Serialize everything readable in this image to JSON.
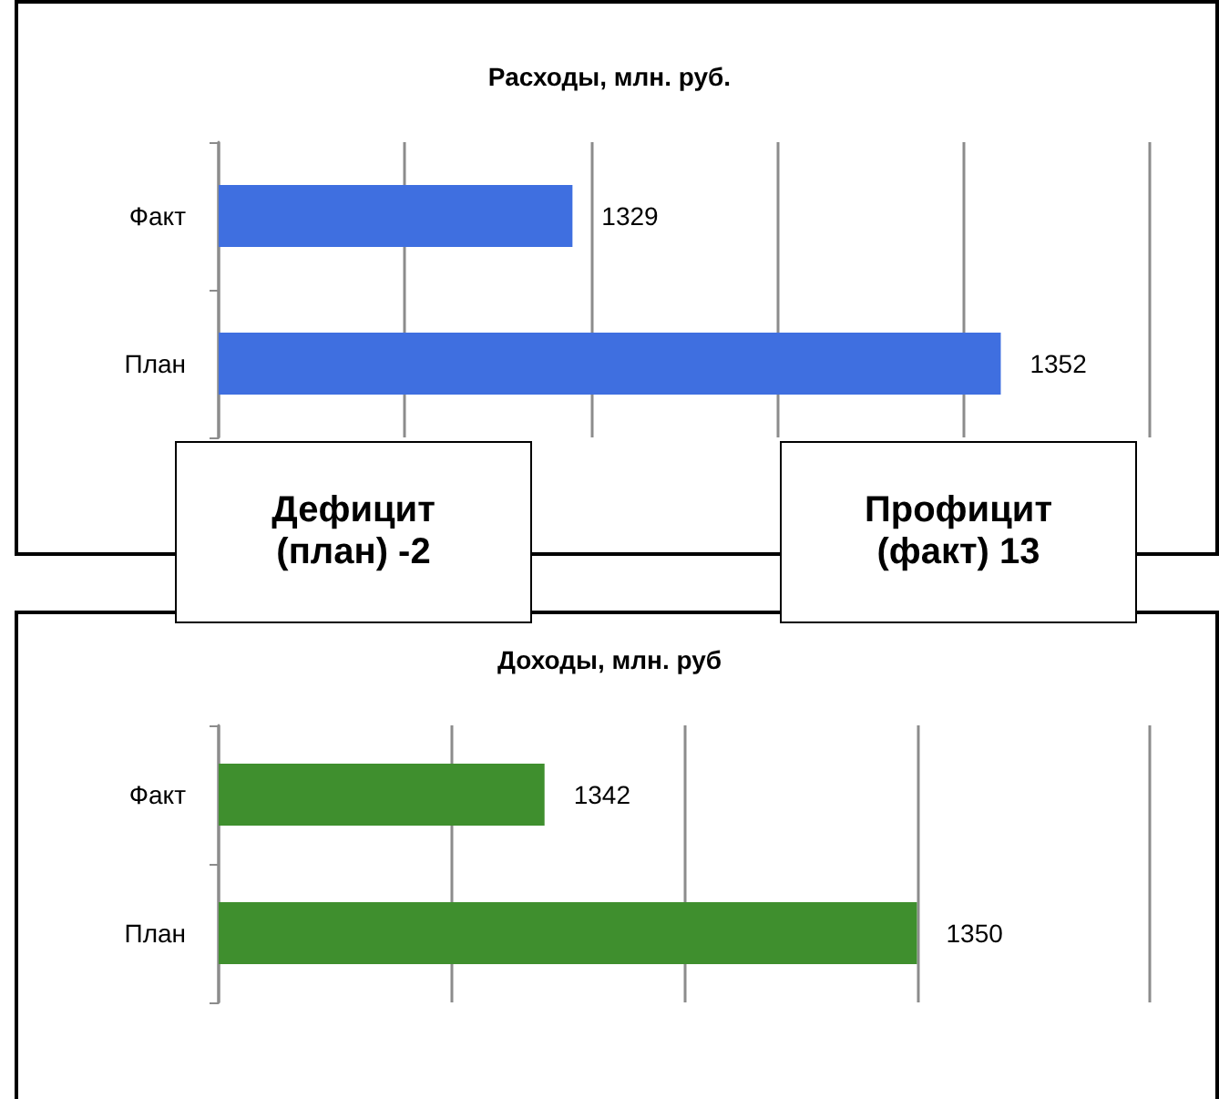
{
  "chart_data": [
    {
      "type": "bar",
      "orientation": "horizontal",
      "title": "Расходы, млн. руб.",
      "categories": [
        "Факт",
        "План"
      ],
      "values": [
        1329,
        1352
      ],
      "color": "#3f6fe0",
      "xlim": [
        1310,
        1360
      ],
      "xticks": [
        {
          "value": 1310,
          "label": null
        },
        {
          "value": 1320,
          "label": null
        },
        {
          "value": 1330,
          "label": null
        },
        {
          "value": 1340,
          "label": null
        },
        {
          "value": 1350,
          "label": null
        },
        {
          "value": 1360,
          "label": null
        }
      ],
      "tick_labels": "y",
      "grid": "x",
      "data_labels": true,
      "annotations": [
        "Дефицит (план) -2",
        "Профицит (факт) 13"
      ]
    },
    {
      "type": "bar",
      "orientation": "horizontal",
      "title": "Доходы, млн. руб",
      "categories": [
        "Факт",
        "План"
      ],
      "values": [
        1342,
        1350
      ],
      "color": "#3f8f2e",
      "xlim": [
        1335,
        1355
      ],
      "xticks": [
        {
          "value": 1335,
          "label": null
        },
        {
          "value": 1340,
          "label": null
        },
        {
          "value": 1345,
          "label": null
        },
        {
          "value": 1350,
          "label": null
        },
        {
          "value": 1355,
          "label": null
        }
      ],
      "tick_labels": "y",
      "grid": "x",
      "data_labels": true
    }
  ]
}
